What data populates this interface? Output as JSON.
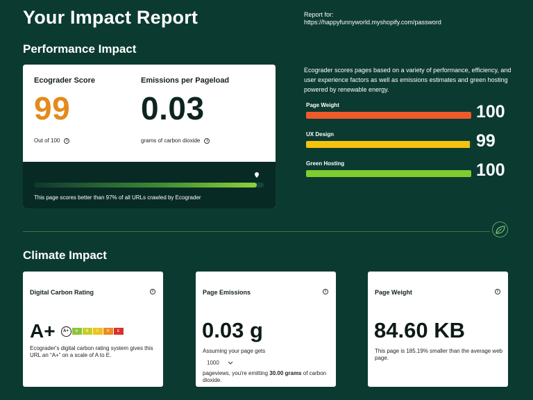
{
  "header": {
    "title": "Your Impact Report",
    "report_for_label": "Report for:",
    "report_url": "https://happyfunnyworld.myshopify.com/password"
  },
  "performance": {
    "section_title": "Performance Impact",
    "score": {
      "label": "Ecograder Score",
      "value": "99",
      "sub": "Out of 100"
    },
    "emissions": {
      "label": "Emissions per Pageload",
      "value": "0.03",
      "sub": "grams of carbon dioxide"
    },
    "progress": {
      "percent": 97,
      "text": "This page scores better than 97% of all URLs crawled by Ecograder"
    },
    "description": "Ecograder scores pages based on a variety of performance, efficiency, and user experience factors as well as emissions estimates and green hosting powered by renewable energy.",
    "metrics": [
      {
        "label": "Page Weight",
        "value": "100",
        "fraction": 1.0,
        "color": "#ef5a2c"
      },
      {
        "label": "UX Design",
        "value": "99",
        "fraction": 0.99,
        "color": "#f5c20e"
      },
      {
        "label": "Green Hosting",
        "value": "100",
        "fraction": 1.0,
        "color": "#7fcc2f"
      }
    ]
  },
  "climate": {
    "section_title": "Climate Impact",
    "rating_card": {
      "title": "Digital Carbon Rating",
      "grade": "A+",
      "scale_current": "A+",
      "scale": [
        {
          "label": "A",
          "color": "#8cc43a"
        },
        {
          "label": "B",
          "color": "#c4cf2a"
        },
        {
          "label": "C",
          "color": "#f0c21c"
        },
        {
          "label": "D",
          "color": "#ec8a24"
        },
        {
          "label": "E",
          "color": "#d8322a"
        }
      ],
      "text": "Ecograder's digital carbon rating system gives this URL an “A+” on a scale of A to E."
    },
    "emissions_card": {
      "title": "Page Emissions",
      "value": "0.03 g",
      "assume_text": "Assuming your page gets",
      "pageviews_value": "1000",
      "result_prefix": "pageviews, you're emitting ",
      "result_bold": "30.00 grams",
      "result_suffix": " of carbon dioxide."
    },
    "weight_card": {
      "title": "Page Weight",
      "value": "84.60 KB",
      "text": "This page is 185.19% smaller than the average web page."
    }
  },
  "icons": {
    "info": "info-icon",
    "leaf": "leaf-icon",
    "location_pin": "location-pin-icon",
    "chevron": "chevron-down-icon"
  },
  "info_glyph": "i"
}
